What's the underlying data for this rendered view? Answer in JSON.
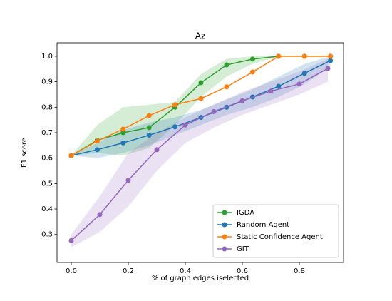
{
  "chart_data": {
    "type": "line",
    "title": "Az",
    "xlabel": "% of graph edges iselected",
    "ylabel": "F1 score",
    "xlim": [
      -0.05,
      0.955
    ],
    "ylim": [
      0.19,
      1.053
    ],
    "xticks": [
      {
        "value": 0,
        "label": "0.0"
      },
      0.2,
      0.4,
      0.6,
      0.8
    ],
    "yticks": [
      0.3,
      0.4,
      0.5,
      0.6,
      0.7,
      0.8,
      0.9,
      {
        "value": 1,
        "label": "1.0"
      }
    ],
    "legend": "lower right",
    "series": [
      {
        "name": "IGDA",
        "color": "#2ca02c",
        "x": [
          0,
          0.091,
          0.182,
          0.273,
          0.364,
          0.455,
          0.545,
          0.636,
          0.727,
          0.818,
          0.909
        ],
        "values": [
          0.61,
          0.67,
          0.7,
          0.72,
          0.8,
          0.896,
          0.966,
          0.989,
          1.0,
          1.0,
          1.0
        ],
        "lower": [
          0.61,
          0.62,
          0.61,
          0.64,
          0.73,
          0.84,
          0.92,
          0.97,
          1.0,
          1.0,
          1.0
        ],
        "upper": [
          0.61,
          0.73,
          0.8,
          0.81,
          0.82,
          0.93,
          0.99,
          1.0,
          1.0,
          1.0,
          1.0
        ]
      },
      {
        "name": "Random Agent",
        "color": "#1f77b4",
        "x": [
          0,
          0.091,
          0.182,
          0.273,
          0.364,
          0.455,
          0.545,
          0.636,
          0.727,
          0.818,
          0.909
        ],
        "values": [
          0.61,
          0.633,
          0.66,
          0.69,
          0.723,
          0.76,
          0.8,
          0.84,
          0.882,
          0.933,
          0.983
        ],
        "lower": [
          0.61,
          0.6,
          0.62,
          0.65,
          0.69,
          0.73,
          0.77,
          0.8,
          0.84,
          0.89,
          0.96
        ],
        "upper": [
          0.61,
          0.66,
          0.71,
          0.74,
          0.76,
          0.79,
          0.83,
          0.87,
          0.92,
          0.97,
          1.0
        ]
      },
      {
        "name": "Static Confidence Agent",
        "color": "#ff7f0e",
        "x": [
          0,
          0.091,
          0.182,
          0.273,
          0.364,
          0.455,
          0.545,
          0.636,
          0.727,
          0.818,
          0.909
        ],
        "values": [
          0.61,
          0.667,
          0.714,
          0.767,
          0.81,
          0.834,
          0.88,
          0.938,
          1.0,
          1.0,
          1.0
        ]
      },
      {
        "name": "GIT",
        "color": "#9467bd",
        "x": [
          0,
          0.1,
          0.2,
          0.3,
          0.4,
          0.5,
          0.6,
          0.7,
          0.8,
          0.9
        ],
        "values": [
          0.276,
          0.378,
          0.513,
          0.633,
          0.73,
          0.783,
          0.825,
          0.863,
          0.891,
          0.952
        ],
        "lower": [
          0.25,
          0.31,
          0.41,
          0.55,
          0.66,
          0.72,
          0.77,
          0.81,
          0.85,
          0.9
        ],
        "upper": [
          0.3,
          0.45,
          0.62,
          0.7,
          0.76,
          0.81,
          0.86,
          0.9,
          0.94,
          0.99
        ]
      }
    ]
  }
}
